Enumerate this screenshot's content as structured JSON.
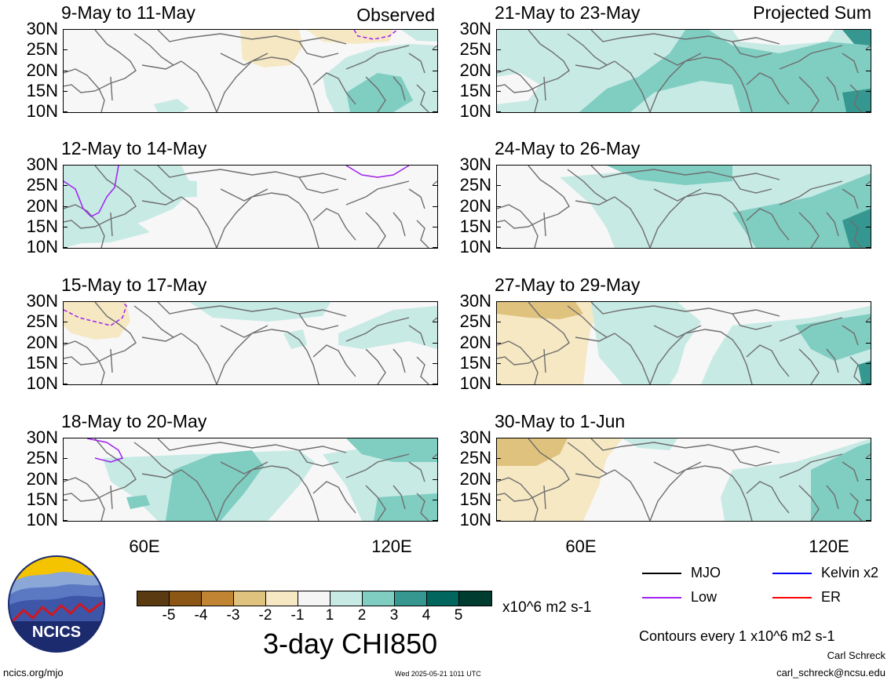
{
  "observed_label": "Observed",
  "projected_label": "Projected Sum",
  "panels_left": [
    {
      "title": "9-May to 11-May"
    },
    {
      "title": "12-May to 14-May"
    },
    {
      "title": "15-May to 17-May"
    },
    {
      "title": "18-May to 20-May"
    }
  ],
  "panels_right": [
    {
      "title": "21-May to 23-May"
    },
    {
      "title": "24-May to 26-May"
    },
    {
      "title": "27-May to 29-May"
    },
    {
      "title": "30-May to 1-Jun"
    }
  ],
  "lat_ticks": [
    "30N",
    "25N",
    "20N",
    "15N",
    "10N"
  ],
  "lon_ticks": [
    "60E",
    "120E"
  ],
  "colorbar": {
    "labels": [
      "-5",
      "-4",
      "-3",
      "-2",
      "-1",
      "1",
      "2",
      "3",
      "4",
      "5"
    ],
    "colors": [
      "#5a3a10",
      "#8c5614",
      "#c08432",
      "#dfc27d",
      "#f6e8c3",
      "#f5f5f5",
      "#c7eae5",
      "#80cdc1",
      "#35978f",
      "#01665e",
      "#003c30"
    ],
    "units": "x10^6 m2 s-1",
    "title": "3-day CHI850"
  },
  "legend": [
    {
      "label": "MJO",
      "color": "#000000"
    },
    {
      "label": "Kelvin x2",
      "color": "#0000ff"
    },
    {
      "label": "Low",
      "color": "#a020f0"
    },
    {
      "label": "ER",
      "color": "#ff0000"
    }
  ],
  "contour_note": "Contours every 1 x10^6 m2 s-1",
  "author": "Carl Schreck",
  "email": "carl_schreck@ncsu.edu",
  "site": "ncics.org/mjo",
  "timestamp": "Wed 2025-05-21 1011 UTC",
  "logo_text": "NCICS"
}
